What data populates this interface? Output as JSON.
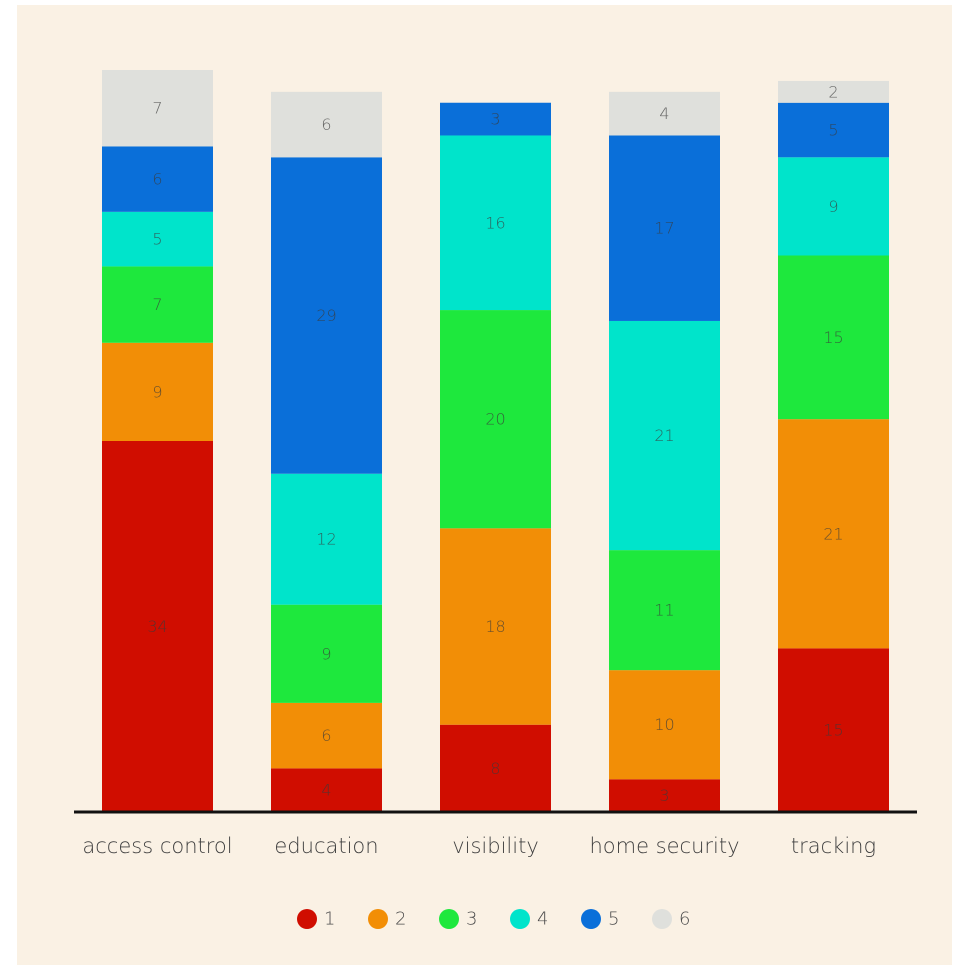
{
  "chart_data": {
    "type": "bar",
    "stacked": true,
    "categories": [
      "access control",
      "education",
      "visibility",
      "home security",
      "tracking"
    ],
    "series": [
      {
        "name": "1",
        "color": "#d00d00",
        "values": [
          34,
          4,
          8,
          3,
          15
        ]
      },
      {
        "name": "2",
        "color": "#f28e06",
        "values": [
          9,
          6,
          18,
          10,
          21
        ]
      },
      {
        "name": "3",
        "color": "#1ee83d",
        "values": [
          7,
          9,
          20,
          11,
          15
        ]
      },
      {
        "name": "4",
        "color": "#00e4cb",
        "values": [
          5,
          12,
          16,
          21,
          9
        ]
      },
      {
        "name": "5",
        "color": "#0a6fd9",
        "values": [
          6,
          29,
          3,
          17,
          5
        ]
      },
      {
        "name": "6",
        "color": "#dfe0dc",
        "values": [
          7,
          6,
          0,
          4,
          2
        ]
      }
    ],
    "title": "",
    "xlabel": "",
    "ylabel": "",
    "ylim": [
      0,
      68
    ],
    "grid": false,
    "legend_position": "bottom",
    "background_color": "#faf1e4",
    "baseline_color": "#111111"
  }
}
